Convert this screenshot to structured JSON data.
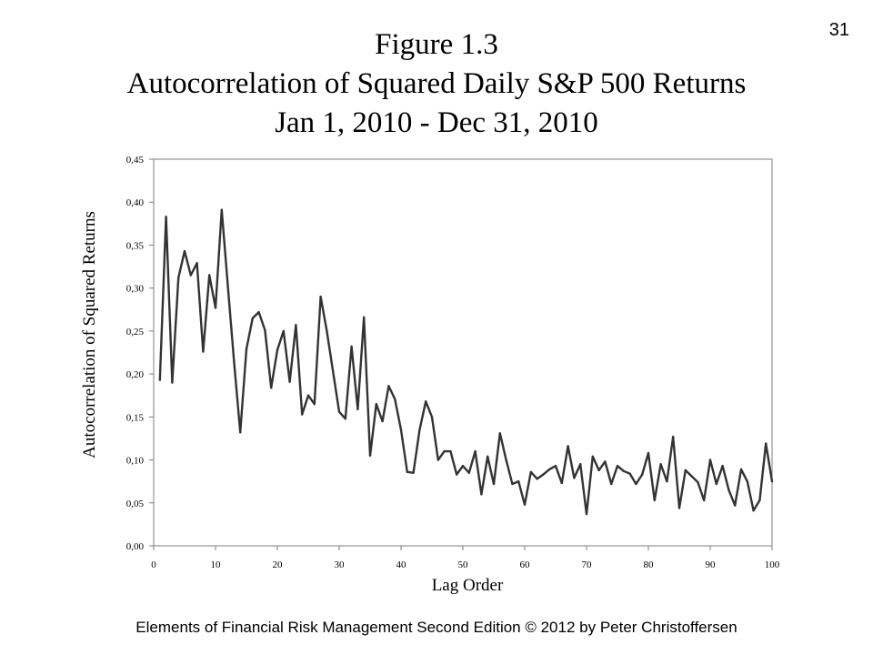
{
  "page_number": "31",
  "title": {
    "line1": "Figure 1.3",
    "line2": "Autocorrelation of Squared Daily S&P 500 Returns",
    "line3": "Jan 1, 2010 - Dec 31, 2010"
  },
  "footer": "Elements of Financial Risk Management Second Edition © 2012  by Peter Christoffersen",
  "chart_data": {
    "type": "line",
    "title": "",
    "xlabel": "Lag Order",
    "ylabel": "Autocorrelation of  Squared Returns",
    "xlim": [
      0,
      100
    ],
    "ylim": [
      0,
      0.45
    ],
    "x_ticks": [
      "0",
      "10",
      "20",
      "30",
      "40",
      "50",
      "60",
      "70",
      "80",
      "90",
      "100"
    ],
    "y_ticks": [
      "0,00",
      "0,05",
      "0,10",
      "0,15",
      "0,20",
      "0,25",
      "0,30",
      "0,35",
      "0,40",
      "0,45"
    ],
    "grid": false,
    "legend": "none",
    "line_color": "#333333",
    "x": [
      1,
      2,
      3,
      4,
      5,
      6,
      7,
      8,
      9,
      10,
      11,
      12,
      13,
      14,
      15,
      16,
      17,
      18,
      19,
      20,
      21,
      22,
      23,
      24,
      25,
      26,
      27,
      28,
      29,
      30,
      31,
      32,
      33,
      34,
      35,
      36,
      37,
      38,
      39,
      40,
      41,
      42,
      43,
      44,
      45,
      46,
      47,
      48,
      49,
      50,
      51,
      52,
      53,
      54,
      55,
      56,
      57,
      58,
      59,
      60,
      61,
      62,
      63,
      64,
      65,
      66,
      67,
      68,
      69,
      70,
      71,
      72,
      73,
      74,
      75,
      76,
      77,
      78,
      79,
      80,
      81,
      82,
      83,
      84,
      85,
      86,
      87,
      88,
      89,
      90,
      91,
      92,
      93,
      94,
      95,
      96,
      97,
      98,
      99,
      100
    ],
    "values": [
      0.193,
      0.383,
      0.19,
      0.312,
      0.343,
      0.315,
      0.329,
      0.226,
      0.315,
      0.277,
      0.391,
      0.302,
      0.214,
      0.132,
      0.229,
      0.265,
      0.272,
      0.251,
      0.184,
      0.228,
      0.25,
      0.191,
      0.257,
      0.153,
      0.175,
      0.165,
      0.29,
      0.25,
      0.203,
      0.156,
      0.148,
      0.232,
      0.159,
      0.266,
      0.105,
      0.165,
      0.145,
      0.186,
      0.171,
      0.135,
      0.086,
      0.085,
      0.135,
      0.168,
      0.15,
      0.1,
      0.11,
      0.11,
      0.083,
      0.093,
      0.085,
      0.11,
      0.06,
      0.104,
      0.072,
      0.131,
      0.1,
      0.072,
      0.075,
      0.048,
      0.086,
      0.078,
      0.083,
      0.089,
      0.093,
      0.073,
      0.116,
      0.079,
      0.095,
      0.037,
      0.104,
      0.088,
      0.098,
      0.072,
      0.093,
      0.087,
      0.084,
      0.072,
      0.083,
      0.108,
      0.053,
      0.095,
      0.075,
      0.127,
      0.044,
      0.088,
      0.081,
      0.074,
      0.053,
      0.1,
      0.072,
      0.093,
      0.065,
      0.047,
      0.089,
      0.075,
      0.041,
      0.053,
      0.119,
      0.075
    ]
  }
}
